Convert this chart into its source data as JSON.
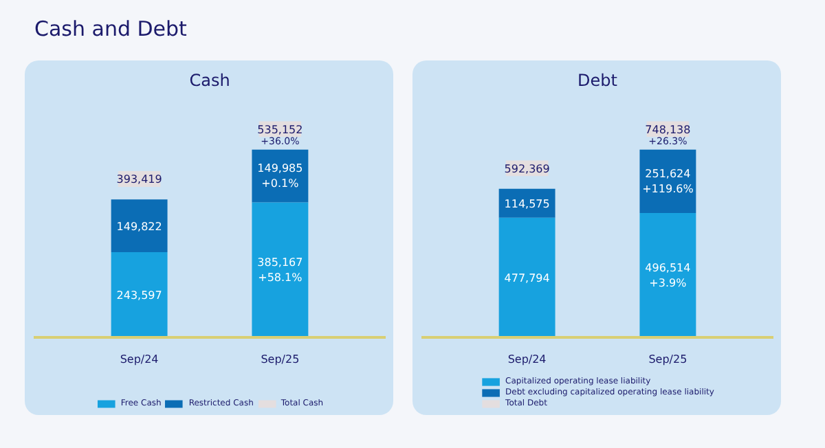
{
  "chart_data": [
    {
      "type": "bar",
      "title": "Cash",
      "stacked": true,
      "categories": [
        "Sep/24",
        "Sep/25"
      ],
      "legend": "bottom",
      "series": [
        {
          "name": "Free Cash",
          "color": "#17a2df",
          "values": [
            243597,
            385167
          ],
          "value_labels": [
            "243,597",
            "385,167\n+58.1%"
          ]
        },
        {
          "name": "Restricted Cash",
          "color": "#0b6db5",
          "values": [
            149822,
            149985
          ],
          "value_labels": [
            "149,822",
            "149,985\n+0.1%"
          ]
        },
        {
          "name": "Total Cash",
          "color": "#e4dedf",
          "values": [
            null,
            null
          ]
        }
      ],
      "totals": [
        "393,419",
        "535,152"
      ],
      "annotations": [
        "Cash and Debt",
        {
          "text": "+36.0%",
          "x": "Sep/25",
          "y": 535152
        }
      ]
    },
    {
      "type": "bar",
      "title": "Debt",
      "stacked": true,
      "categories": [
        "Sep/24",
        "Sep/25"
      ],
      "legend": "bottom",
      "series": [
        {
          "name": "Capitalized operating lease liability",
          "color": "#17a2df",
          "values": [
            477794,
            496514
          ],
          "value_labels": [
            "477,794",
            "496,514\n+3.9%"
          ]
        },
        {
          "name": "Debt excluding capitalized operating lease liability",
          "color": "#0b6db5",
          "values": [
            114575,
            251624
          ],
          "value_labels": [
            "114,575",
            "251,624\n+119.6%"
          ]
        },
        {
          "name": "Total Debt",
          "color": "#e4dedf",
          "values": [
            null,
            null
          ]
        }
      ],
      "totals": [
        "592,369",
        "748,138"
      ],
      "annotations": [
        {
          "text": "+26.3%",
          "x": "Sep/25",
          "y": 748138
        }
      ]
    }
  ]
}
